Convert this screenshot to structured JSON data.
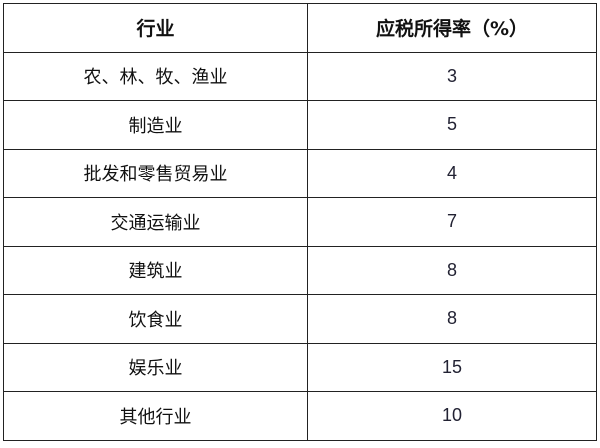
{
  "table": {
    "headers": [
      "行业",
      "应税所得率（%）"
    ],
    "rows": [
      {
        "industry": "农、林、牧、渔业",
        "rate": "3"
      },
      {
        "industry": "制造业",
        "rate": "5"
      },
      {
        "industry": "批发和零售贸易业",
        "rate": "4"
      },
      {
        "industry": "交通运输业",
        "rate": "7"
      },
      {
        "industry": "建筑业",
        "rate": "8"
      },
      {
        "industry": "饮食业",
        "rate": "8"
      },
      {
        "industry": "娱乐业",
        "rate": "15"
      },
      {
        "industry": "其他行业",
        "rate": "10"
      }
    ]
  }
}
